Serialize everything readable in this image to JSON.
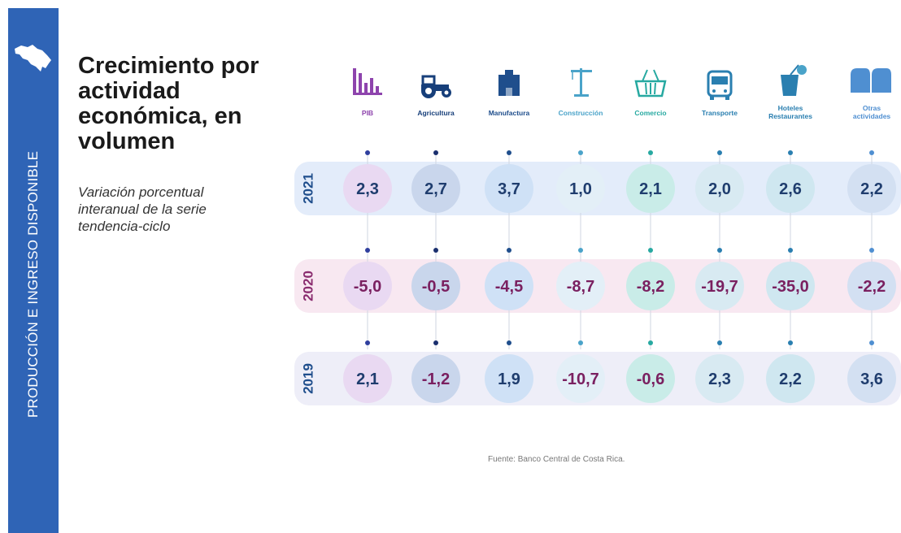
{
  "sidebar": {
    "label": "PRODUCCIÓN E INGRESO DISPONIBLE",
    "map_icon": "costa-rica-map-icon"
  },
  "title": "Crecimiento por actividad económica, en volumen",
  "subtitle": "Variación porcentual interanual de la serie tendencia-ciclo",
  "source": "Fuente: Banco Central de Costa Rica.",
  "colors": {
    "sidebar": "#2f64b6",
    "year_2021": "#1f4e8c",
    "year_2020": "#8a2c6f",
    "year_2019": "#1f4e8c",
    "row_2021": "#e3ecfa",
    "row_2020": "#f8e8f1",
    "row_2019": "#eeeef8"
  },
  "chart_data": {
    "type": "table",
    "categories": [
      {
        "lines": [
          "PIB"
        ],
        "icon": "bar-chart-icon",
        "color": "#8e44ad"
      },
      {
        "lines": [
          "Agricultura"
        ],
        "icon": "tractor-icon",
        "color": "#173f7a"
      },
      {
        "lines": [
          "Manufactura"
        ],
        "icon": "factory-icon",
        "color": "#1f4e8c"
      },
      {
        "lines": [
          "Construcción"
        ],
        "icon": "crane-icon",
        "color": "#4aa3c9"
      },
      {
        "lines": [
          "Comercio"
        ],
        "icon": "basket-icon",
        "color": "#27a9a1"
      },
      {
        "lines": [
          "Transporte"
        ],
        "icon": "bus-icon",
        "color": "#2a7fb0"
      },
      {
        "lines": [
          "Hoteles",
          "Restaurantes"
        ],
        "icon": "drink-icon",
        "color": "#2a7fb0"
      },
      {
        "lines": [
          "Otras",
          "actividades"
        ],
        "icon": "seats-icon",
        "color": "#4f8fd1"
      }
    ],
    "series": [
      {
        "name": "2021",
        "values": [
          2.3,
          2.7,
          3.7,
          1.0,
          2.1,
          2.0,
          2.6,
          2.2
        ],
        "labels": [
          "2,3",
          "2,7",
          "3,7",
          "1,0",
          "2,1",
          "2,0",
          "2,6",
          "2,2"
        ]
      },
      {
        "name": "2020",
        "values": [
          -5.0,
          -0.5,
          -4.5,
          -8.7,
          -8.2,
          -19.7,
          -35.0,
          -2.2
        ],
        "labels": [
          "-5,0",
          "-0,5",
          "-4,5",
          "-8,7",
          "-8,2",
          "-19,7",
          "-35,0",
          "-2,2"
        ]
      },
      {
        "name": "2019",
        "values": [
          2.1,
          -1.2,
          1.9,
          -10.7,
          -0.6,
          2.3,
          2.2,
          3.6
        ],
        "labels": [
          "2,1",
          "-1,2",
          "1,9",
          "-10,7",
          "-0,6",
          "2,3",
          "2,2",
          "3,6"
        ]
      }
    ],
    "circle_colors": [
      "#e9d9f2",
      "#c9d6ec",
      "#cfe1f6",
      "#e3eff7",
      "#c9ece8",
      "#d8eaf2",
      "#cfe7f0",
      "#d3e0f2"
    ],
    "dot_colors": [
      "#2f3f9e",
      "#1a2f6e",
      "#1f4e8c",
      "#4aa3c9",
      "#27a9a1",
      "#2a7fb0",
      "#2a7fb0",
      "#4f8fd1"
    ],
    "value_color_positive": "#1f3d6e",
    "value_color_negative": "#7a2060"
  }
}
